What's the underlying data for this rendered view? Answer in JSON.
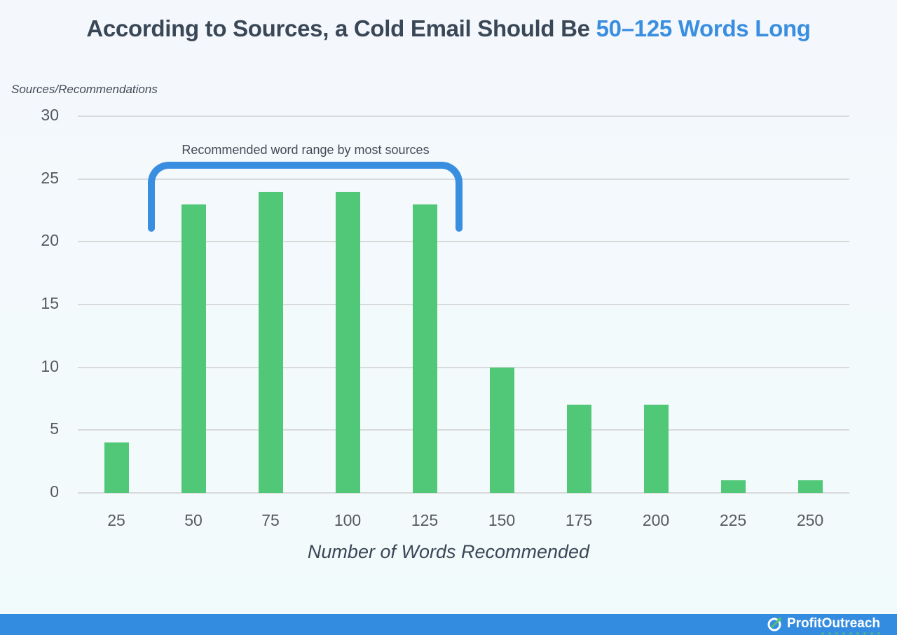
{
  "title": {
    "prefix": "According to Sources, a Cold Email Should Be ",
    "highlight": "50–125 Words Long",
    "highlight_color": "#3a8ee0"
  },
  "annotation": {
    "label": "Recommended word range by most sources",
    "range_start": 50,
    "range_end": 125,
    "color": "#3a8ee0"
  },
  "footer": {
    "brand": "ProfitOutreach",
    "logo_icon": "circle-arrow-growth-icon",
    "background": "#348ce0"
  },
  "chart_data": {
    "type": "bar",
    "title": "According to Sources, a Cold Email Should Be 50–125 Words Long",
    "xlabel": "Number of Words Recommended",
    "ylabel": "Sources/Recommendations",
    "categories": [
      "25",
      "50",
      "75",
      "100",
      "125",
      "150",
      "175",
      "200",
      "225",
      "250"
    ],
    "values": [
      4,
      23,
      24,
      24,
      23,
      10,
      7,
      7,
      1,
      1
    ],
    "yticks": [
      "0",
      "5",
      "10",
      "15",
      "20",
      "25",
      "30"
    ],
    "ylim": [
      0,
      30
    ],
    "grid": true,
    "bar_color": "#51c878",
    "legend": null,
    "annotations": [
      "Recommended word range by most sources (bracket over 50–125)"
    ]
  }
}
